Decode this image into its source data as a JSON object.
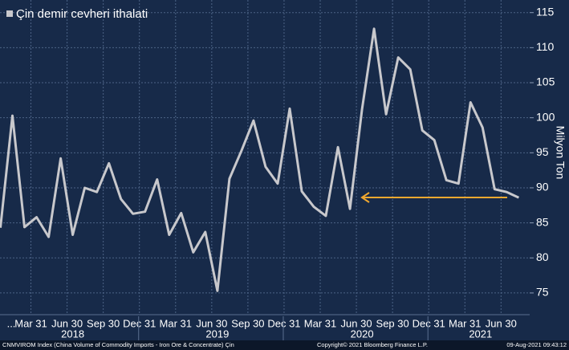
{
  "chart_data": {
    "type": "line",
    "title": "Çin demir cevheri ithalati",
    "y_axis_label": "Milyon Ton",
    "categories": [
      "...",
      null,
      "Mar 31",
      null,
      null,
      "Jun 30",
      null,
      null,
      "Sep 30",
      null,
      null,
      "Dec 31",
      null,
      null,
      "Mar 31",
      null,
      null,
      "Jun 30",
      null,
      null,
      "Sep 30",
      null,
      null,
      "Dec 31",
      null,
      null,
      "Mar 31",
      null,
      null,
      "Jun 30",
      null,
      null,
      "Sep 30",
      null,
      null,
      "Dec 31",
      null,
      null,
      "Mar 31",
      null,
      null,
      "Jun 30",
      null,
      null
    ],
    "years": [
      "2018",
      "2019",
      "2020",
      "2021"
    ],
    "series": [
      {
        "name": "Çin demir cevheri ithalati",
        "color": "#c8c8cc",
        "values": [
          84.3,
          100.3,
          84.4,
          85.8,
          83.0,
          94.2,
          83.3,
          90.0,
          89.4,
          93.5,
          88.4,
          86.3,
          86.6,
          91.2,
          83.3,
          86.4,
          80.8,
          83.7,
          75.3,
          91.3,
          95.3,
          99.6,
          93.0,
          90.6,
          101.3,
          89.5,
          87.3,
          86.0,
          95.8,
          87.0,
          101.2,
          112.7,
          100.5,
          108.6,
          106.9,
          98.2,
          96.8,
          91.1,
          90.6,
          102.2,
          98.6,
          89.8,
          89.4,
          88.6
        ]
      }
    ],
    "ylim": [
      71.9,
      116.8
    ],
    "yticks": [
      75,
      80,
      85,
      90,
      95,
      100,
      105,
      110,
      115
    ],
    "grid": true,
    "footer": {
      "source": "CNMVIROM Index (China Volume of Commodity Imports - Iron Ore & Concentrate) Çin",
      "copyright": "Copyright© 2021 Bloomberg Finance L.P.",
      "timestamp": "09-Aug-2021 09:43:12"
    }
  }
}
